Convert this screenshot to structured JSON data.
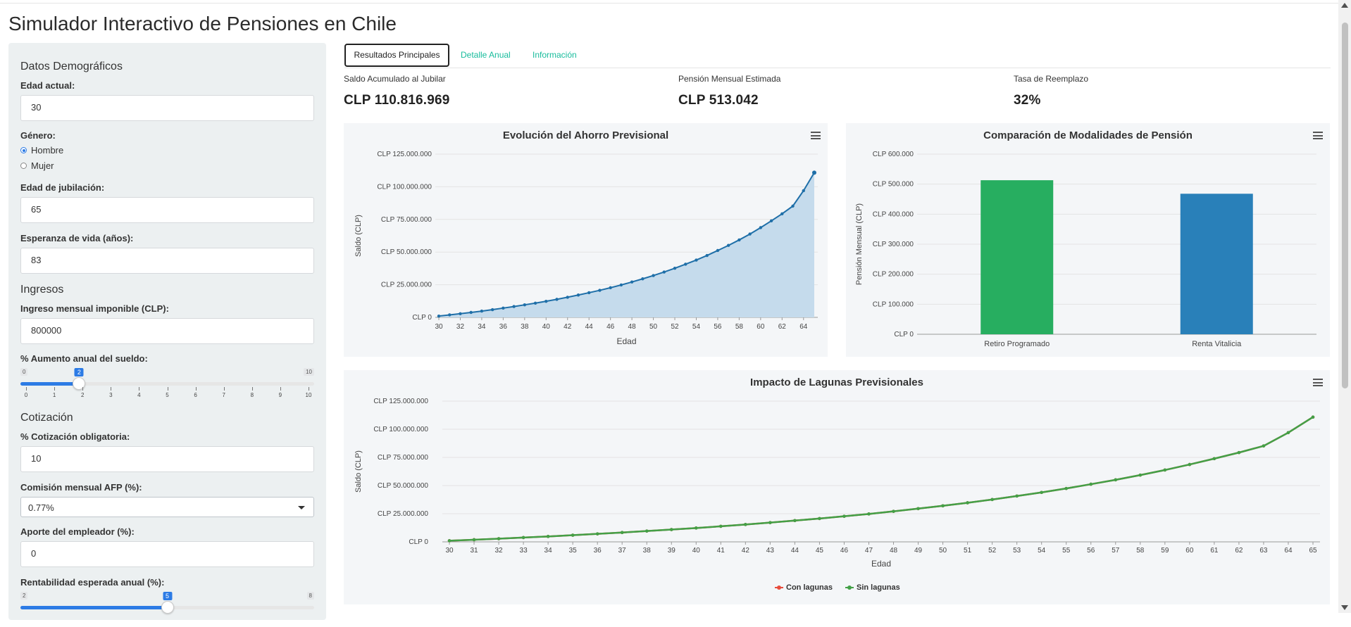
{
  "app": {
    "title": "Simulador Interactivo de Pensiones en Chile"
  },
  "colors": {
    "accent": "#2c7be5",
    "link": "#18bc9c",
    "green": "#27ae60",
    "blue": "#2980b9",
    "red": "#e74c3c",
    "line_blue": "#1f6fa8"
  },
  "sidebar": {
    "demograficos": {
      "heading": "Datos Demográficos",
      "edad_label": "Edad actual:",
      "edad_value": "30",
      "genero_label": "Género:",
      "genero_options": [
        "Hombre",
        "Mujer"
      ],
      "genero_selected": "Hombre",
      "jubilacion_label": "Edad de jubilación:",
      "jubilacion_value": "65",
      "esperanza_label": "Esperanza de vida (años):",
      "esperanza_value": "83"
    },
    "ingresos": {
      "heading": "Ingresos",
      "ingreso_label": "Ingreso mensual imponible (CLP):",
      "ingreso_value": "800000",
      "aumento_label": "% Aumento anual del sueldo:",
      "aumento_slider": {
        "min": "0",
        "max": "10",
        "value": 2,
        "value_label": "2",
        "ticks": [
          "0",
          "1",
          "2",
          "3",
          "4",
          "5",
          "6",
          "7",
          "8",
          "9",
          "10"
        ]
      }
    },
    "cotizacion": {
      "heading": "Cotización",
      "obligatoria_label": "% Cotización obligatoria:",
      "obligatoria_value": "10",
      "comision_label": "Comisión mensual AFP (%):",
      "comision_value": "0.77%",
      "empleador_label": "Aporte del empleador (%):",
      "empleador_value": "0",
      "rentabilidad_label": "Rentabilidad esperada anual (%):",
      "rentabilidad_slider": {
        "min": "2",
        "max": "8",
        "value": 5,
        "value_label": "5"
      }
    }
  },
  "tabs": [
    {
      "label": "Resultados Principales",
      "active": true
    },
    {
      "label": "Detalle Anual",
      "active": false
    },
    {
      "label": "Información",
      "active": false
    }
  ],
  "kpis": [
    {
      "label": "Saldo Acumulado al Jubilar",
      "value": "CLP 110.816.969"
    },
    {
      "label": "Pensión Mensual Estimada",
      "value": "CLP 513.042"
    },
    {
      "label": "Tasa de Reemplazo",
      "value": "32%"
    }
  ],
  "chart_data": [
    {
      "type": "area",
      "title": "Evolución del Ahorro Previsional",
      "xlabel": "Edad",
      "ylabel": "Saldo (CLP)",
      "ylim": [
        0,
        125000000
      ],
      "y_ticks": [
        "CLP 0",
        "CLP 25.000.000",
        "CLP 50.000.000",
        "CLP 75.000.000",
        "CLP 100.000.000",
        "CLP 125.000.000"
      ],
      "x_ticks": [
        "30",
        "32",
        "34",
        "36",
        "38",
        "40",
        "42",
        "44",
        "46",
        "48",
        "50",
        "52",
        "54",
        "56",
        "58",
        "60",
        "62",
        "64"
      ],
      "x": [
        30,
        31,
        32,
        33,
        34,
        35,
        36,
        37,
        38,
        39,
        40,
        41,
        42,
        43,
        44,
        45,
        46,
        47,
        48,
        49,
        50,
        51,
        52,
        53,
        54,
        55,
        56,
        57,
        58,
        59,
        60,
        61,
        62,
        63,
        64,
        65
      ],
      "series": [
        {
          "values": [
            1.0,
            1.9,
            2.8,
            3.8,
            4.8,
            5.9,
            7.1,
            8.3,
            9.6,
            10.9,
            12.3,
            13.8,
            15.4,
            17.1,
            18.9,
            20.7,
            22.7,
            24.8,
            27.1,
            29.5,
            32.0,
            34.7,
            37.6,
            40.7,
            43.9,
            47.4,
            51.2,
            55.1,
            59.3,
            63.8,
            68.7,
            73.9,
            79.3,
            85.2,
            97.0,
            110.8
          ],
          "color": "#1f6fa8",
          "fill": "#c5dbec"
        }
      ],
      "grid": true
    },
    {
      "type": "bar",
      "title": "Comparación de Modalidades de Pensión",
      "ylabel": "Pensión Mensual (CLP)",
      "ylim": [
        0,
        600000
      ],
      "y_ticks": [
        "CLP 0",
        "CLP 100.000",
        "CLP 200.000",
        "CLP 300.000",
        "CLP 400.000",
        "CLP 500.000",
        "CLP 600.000"
      ],
      "categories": [
        "Retiro Programado",
        "Renta Vitalicia"
      ],
      "values": [
        513042,
        468000
      ],
      "colors": [
        "#27ae60",
        "#2980b9"
      ],
      "grid": true
    },
    {
      "type": "line",
      "title": "Impacto de Lagunas Previsionales",
      "xlabel": "Edad",
      "ylabel": "Saldo (CLP)",
      "ylim": [
        0,
        125000000
      ],
      "y_ticks": [
        "CLP 0",
        "CLP 25.000.000",
        "CLP 50.000.000",
        "CLP 75.000.000",
        "CLP 100.000.000",
        "CLP 125.000.000"
      ],
      "x": [
        30,
        31,
        32,
        33,
        34,
        35,
        36,
        37,
        38,
        39,
        40,
        41,
        42,
        43,
        44,
        45,
        46,
        47,
        48,
        49,
        50,
        51,
        52,
        53,
        54,
        55,
        56,
        57,
        58,
        59,
        60,
        61,
        62,
        63,
        64,
        65
      ],
      "series": [
        {
          "name": "Con lagunas",
          "color": "#e74c3c",
          "values": [
            1.0,
            1.9,
            2.8,
            3.8,
            4.8,
            5.9,
            7.1,
            8.3,
            9.6,
            10.9,
            12.3,
            13.8,
            15.4,
            17.1,
            18.9,
            20.7,
            22.7,
            24.8,
            27.1,
            29.5,
            32.0,
            34.7,
            37.6,
            40.7,
            43.9,
            47.4,
            51.2,
            55.1,
            59.3,
            63.8,
            68.7,
            73.9,
            79.3,
            85.2,
            97.0,
            110.8
          ]
        },
        {
          "name": "Sin lagunas",
          "color": "#43a047",
          "values": [
            1.0,
            1.9,
            2.8,
            3.8,
            4.8,
            5.9,
            7.1,
            8.3,
            9.6,
            10.9,
            12.3,
            13.8,
            15.4,
            17.1,
            18.9,
            20.7,
            22.7,
            24.8,
            27.1,
            29.5,
            32.0,
            34.7,
            37.6,
            40.7,
            43.9,
            47.4,
            51.2,
            55.1,
            59.3,
            63.8,
            68.7,
            73.9,
            79.3,
            85.2,
            97.0,
            110.8
          ]
        }
      ],
      "legend": "bottom-center",
      "grid": true
    }
  ]
}
